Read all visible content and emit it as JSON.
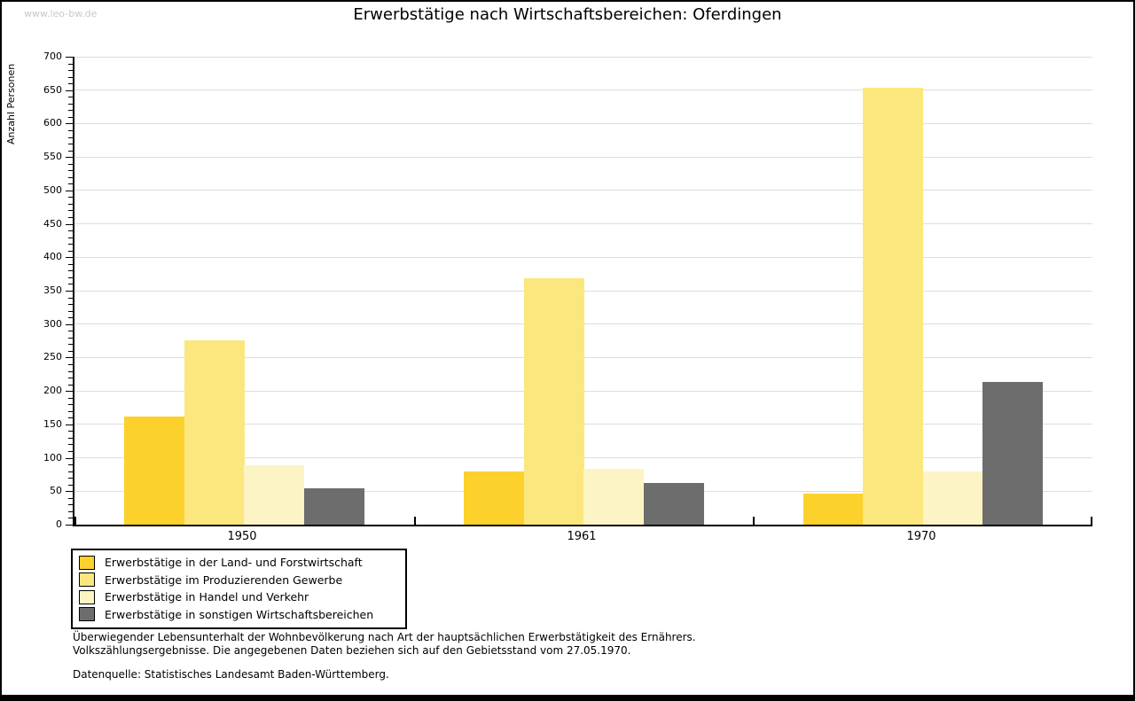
{
  "watermark": "www.leo-bw.de",
  "title": "Erwerbstätige nach Wirtschaftsbereichen: Oferdingen",
  "chart_data": {
    "type": "bar",
    "title": "Erwerbstätige nach Wirtschaftsbereichen: Oferdingen",
    "xlabel": "",
    "ylabel": "Anzahl Personen",
    "categories": [
      "1950",
      "1961",
      "1970"
    ],
    "series": [
      {
        "name": "Erwerbstätige in der Land- und Forstwirtschaft",
        "color": "#FCD12B",
        "values": [
          162,
          79,
          47
        ]
      },
      {
        "name": "Erwerbstätige im Produzierenden Gewerbe",
        "color": "#FBE77E",
        "values": [
          276,
          368,
          654
        ]
      },
      {
        "name": "Erwerbstätige in Handel und Verkehr",
        "color": "#FCF4C4",
        "values": [
          89,
          84,
          79
        ]
      },
      {
        "name": "Erwerbstätige in sonstigen Wirtschaftsbereichen",
        "color": "#6D6D6D",
        "values": [
          55,
          62,
          213
        ]
      }
    ],
    "ylim": [
      0,
      700
    ],
    "yticks": [
      0,
      50,
      100,
      150,
      200,
      250,
      300,
      350,
      400,
      450,
      500,
      550,
      600,
      650,
      700
    ],
    "minor_tick_step": 10,
    "grid": true,
    "grid_color": "#DEDEDE",
    "axis_color": "#000000",
    "legend_position": "bottom-left"
  },
  "footer": {
    "line1": "Überwiegender Lebensunterhalt der Wohnbevölkerung nach Art der hauptsächlichen Erwerbstätigkeit des Ernährers.",
    "line2": "Volkszählungsergebnisse. Die angegebenen Daten beziehen sich auf den Gebietsstand vom 27.05.1970.",
    "source": "Datenquelle: Statistisches Landesamt Baden-Württemberg."
  }
}
